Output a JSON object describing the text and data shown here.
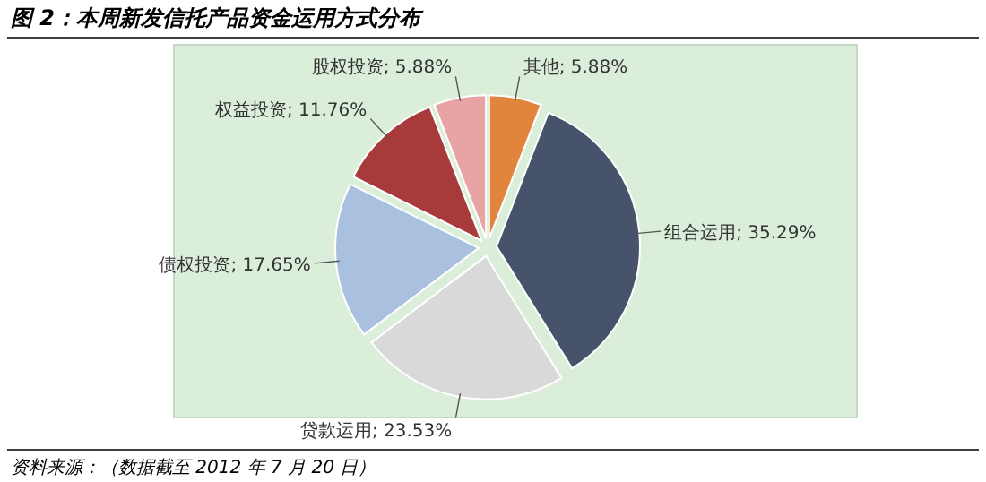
{
  "chart_data": {
    "type": "pie",
    "title": "图 2：本周新发信托产品资金运用方式分布",
    "categories": [
      "其他",
      "组合运用",
      "贷款运用",
      "债权投资",
      "权益投资",
      "股权投资"
    ],
    "values": [
      5.88,
      35.29,
      23.53,
      17.65,
      11.76,
      5.88
    ],
    "colors": [
      "#e2853c",
      "#46536a",
      "#d9d9d9",
      "#a9c0df",
      "#a73b3c",
      "#e8a3a4"
    ],
    "value_labels": [
      "; 5.88%",
      "; 35.29%",
      "; 23.53%",
      "; 17.65%",
      "; 11.76%",
      "; 5.88%"
    ],
    "legend": false,
    "annotations": [
      "资料来源：（数据截至 2012 年 7 月 20 日）"
    ]
  }
}
